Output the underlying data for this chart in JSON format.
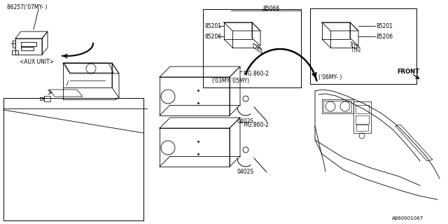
{
  "background_color": "#ffffff",
  "line_color": "#000000",
  "diagram_id": "A860001067",
  "labels": {
    "aux_unit_part": "86257('07MY- )",
    "aux_unit_label": "<AUX UNIT>",
    "part_85066": "85066",
    "part_85201_left": "85201",
    "part_85206_left": "85206",
    "year_left": "('03MY-'05MY)",
    "part_85201_right": "85201",
    "part_85206_right": "85206",
    "year_right": "('06MY- )",
    "front_label": "FRONT",
    "fig860_2_top": "FIG.860-2",
    "fig860_2_bot": "FIG.860-2",
    "screw_top": "0402S",
    "screw_bot": "0402S"
  },
  "fs": 5.5,
  "fs_id": 5.0
}
